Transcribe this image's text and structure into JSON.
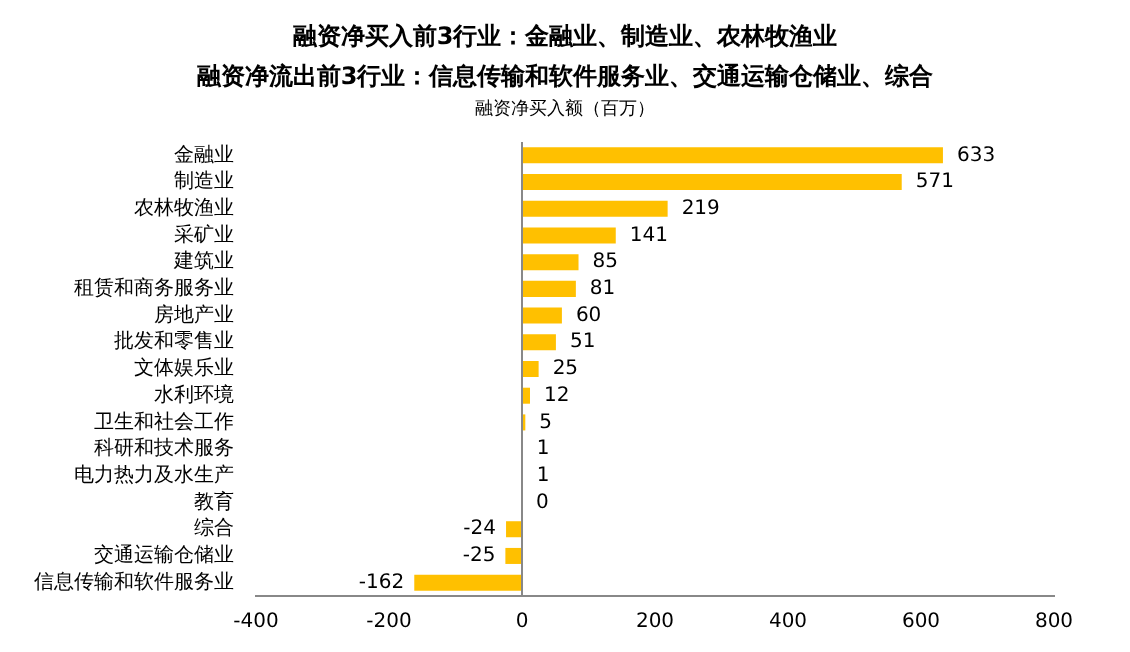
{
  "chart_data": {
    "type": "bar",
    "orientation": "horizontal",
    "title": "融资净买入前3行业：金融业、制造业、农林牧渔业",
    "subtitle": "融资净流出前3行业：信息传输和软件服务业、交通运输仓储业、综合",
    "annotations": [
      "融资净买入额（百万）"
    ],
    "ref_lines": [
      {
        "axis": "x",
        "value": 0,
        "color": "#888888"
      }
    ],
    "categories": [
      "金融业",
      "制造业",
      "农林牧渔业",
      "采矿业",
      "建筑业",
      "租赁和商务服务业",
      "房地产业",
      "批发和零售业",
      "文体娱乐业",
      "水利环境",
      "卫生和社会工作",
      "科研和技术服务",
      "电力热力及水生产",
      "教育",
      "综合",
      "交通运输仓储业",
      "信息传输和软件服务业"
    ],
    "values": [
      633,
      571,
      219,
      141,
      85,
      81,
      60,
      51,
      25,
      12,
      5,
      1,
      1,
      0,
      -24,
      -25,
      -162
    ],
    "color": "#ffc000",
    "xlim": [
      -400,
      800
    ],
    "xticks": [
      -400,
      -200,
      0,
      200,
      400,
      600,
      800
    ],
    "grid": false,
    "legend": false,
    "data_labels": true
  }
}
